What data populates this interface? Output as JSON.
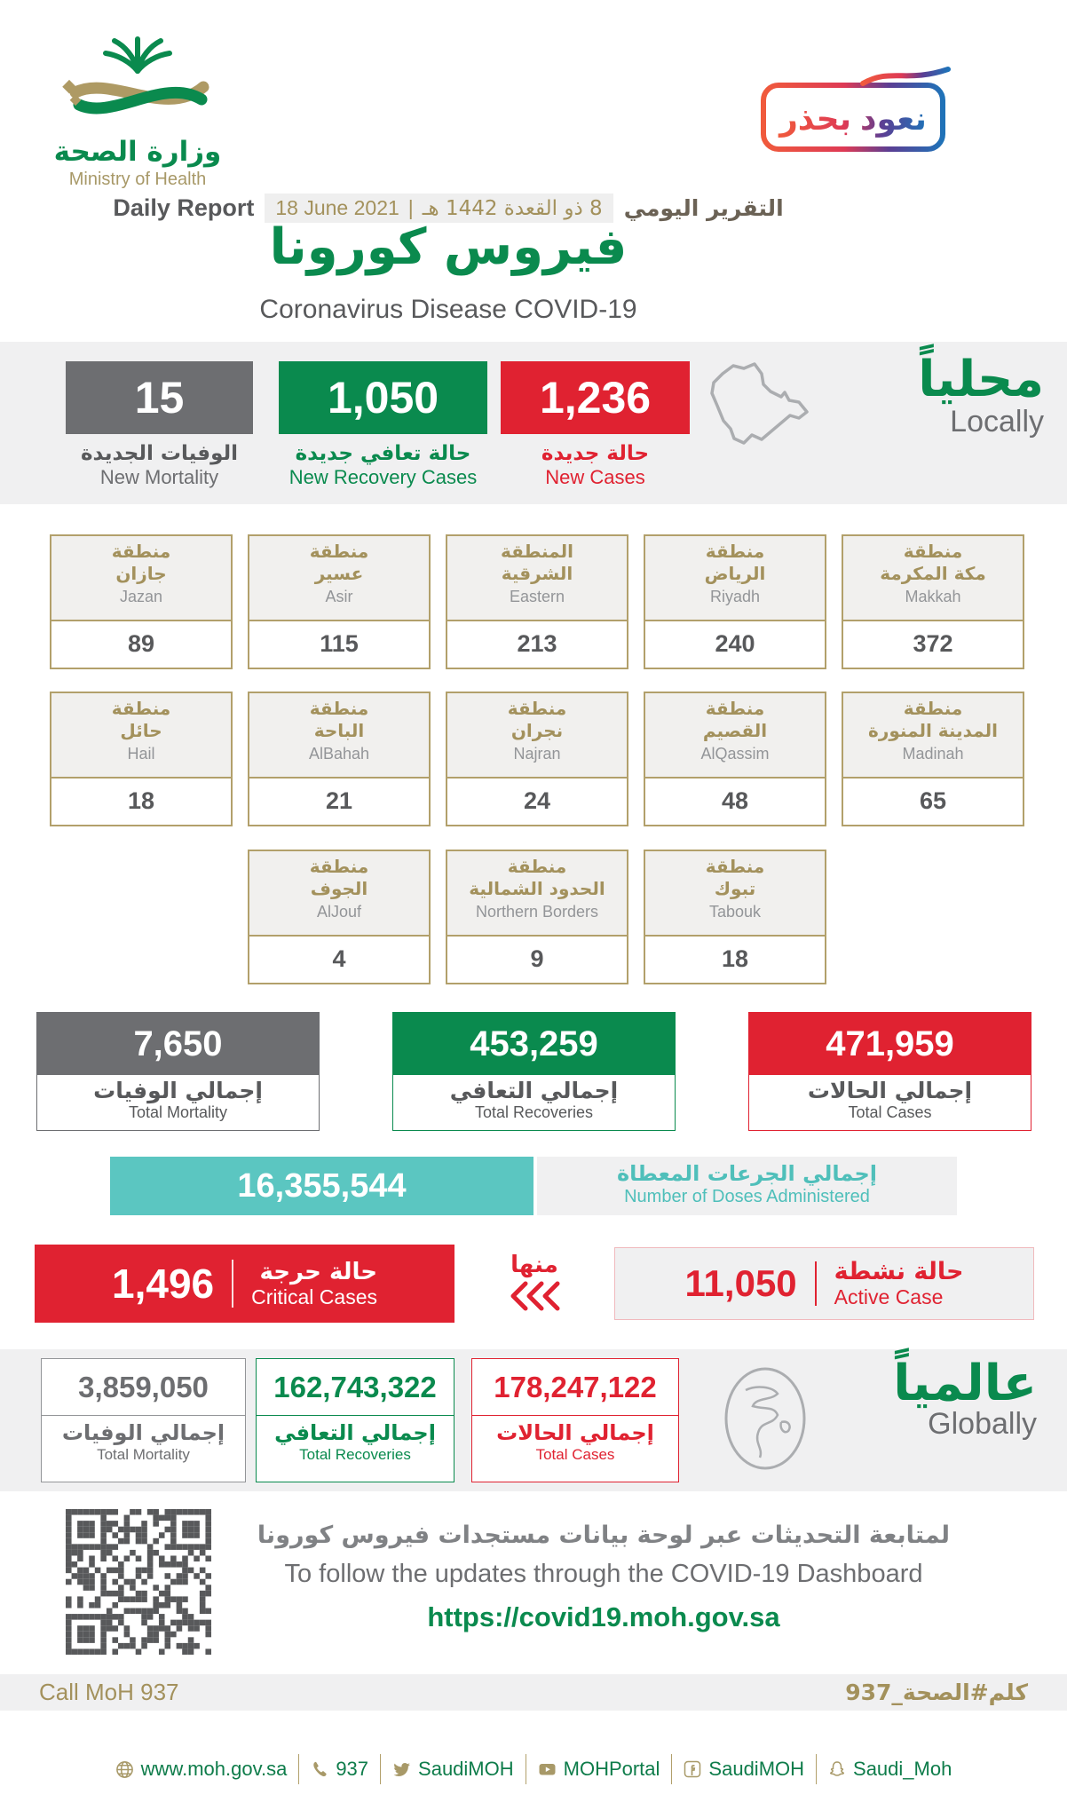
{
  "colors": {
    "green": "#0A8A4E",
    "red": "#E02231",
    "gray": "#6D6E71",
    "gold": "#A3915C",
    "gold_border": "#B2A06B",
    "teal": "#5BC6C1",
    "band_bg": "#F0F0F1",
    "dark_text": "#58595B"
  },
  "header": {
    "logo_ar": "وزارة الصحة",
    "logo_en": "Ministry of Health",
    "badge_text": "نعود بحذر",
    "report_label_en": "Daily Report",
    "date_gregorian": "18 June 2021",
    "date_separator": "|",
    "date_hijri": "8 ذو القعدة 1442 هـ",
    "report_label_ar": "التقرير اليومي",
    "title_ar": "فيروس كورونا",
    "title_en": "Coronavirus Disease COVID-19"
  },
  "locally": {
    "title_ar": "محلياً",
    "title_en": "Locally",
    "stats": [
      {
        "value": "15",
        "label_ar": "الوفيات الجديدة",
        "label_en": "New Mortality"
      },
      {
        "value": "1,050",
        "label_ar": "حالة تعافي جديدة",
        "label_en": "New Recovery Cases"
      },
      {
        "value": "1,236",
        "label_ar": "حالة جديدة",
        "label_en": "New Cases"
      }
    ]
  },
  "regions": {
    "rows": [
      {
        "cards": [
          {
            "ar1": "منطقة",
            "ar2": "جازان",
            "en": "Jazan",
            "value": "89"
          },
          {
            "ar1": "منطقة",
            "ar2": "عسير",
            "en": "Asir",
            "value": "115"
          },
          {
            "ar1": "المنطقة",
            "ar2": "الشرقية",
            "en": "Eastern",
            "value": "213"
          },
          {
            "ar1": "منطقة",
            "ar2": "الرياض",
            "en": "Riyadh",
            "value": "240"
          },
          {
            "ar1": "منطقة",
            "ar2": "مكة المكرمة",
            "en": "Makkah",
            "value": "372"
          }
        ]
      },
      {
        "cards": [
          {
            "ar1": "منطقة",
            "ar2": "حائل",
            "en": "Hail",
            "value": "18"
          },
          {
            "ar1": "منطقة",
            "ar2": "الباحة",
            "en": "AlBahah",
            "value": "21"
          },
          {
            "ar1": "منطقة",
            "ar2": "نجران",
            "en": "Najran",
            "value": "24"
          },
          {
            "ar1": "منطقة",
            "ar2": "القصيم",
            "en": "AlQassim",
            "value": "48"
          },
          {
            "ar1": "منطقة",
            "ar2": "المدينة المنورة",
            "en": "Madinah",
            "value": "65"
          }
        ]
      },
      {
        "cards": [
          {
            "ar1": "منطقة",
            "ar2": "الجوف",
            "en": "AlJouf",
            "value": "4"
          },
          {
            "ar1": "منطقة",
            "ar2": "الحدود الشمالية",
            "en": "Northern Borders",
            "value": "9"
          },
          {
            "ar1": "منطقة",
            "ar2": "تبوك",
            "en": "Tabouk",
            "value": "18"
          }
        ]
      }
    ]
  },
  "totals": [
    {
      "value": "7,650",
      "label_ar": "إجمالي الوفيات",
      "label_en": "Total Mortality"
    },
    {
      "value": "453,259",
      "label_ar": "إجمالي التعافي",
      "label_en": "Total Recoveries"
    },
    {
      "value": "471,959",
      "label_ar": "إجمالي الحالات",
      "label_en": "Total Cases"
    }
  ],
  "doses": {
    "value": "16,355,544",
    "label_ar": "إجمالي الجرعات المعطاة",
    "label_en": "Number of Doses Administered"
  },
  "critical": {
    "value": "1,496",
    "label_ar": "حالة حرجة",
    "label_en": "Critical Cases"
  },
  "of_which_ar": "منها",
  "active": {
    "value": "11,050",
    "label_ar": "حالة نشطة",
    "label_en": "Active Case"
  },
  "globally": {
    "title_ar": "عالمياً",
    "title_en": "Globally",
    "stats": [
      {
        "value": "3,859,050",
        "label_ar": "إجمالي الوفيات",
        "label_en": "Total Mortality"
      },
      {
        "value": "162,743,322",
        "label_ar": "إجمالي التعافي",
        "label_en": "Total Recoveries"
      },
      {
        "value": "178,247,122",
        "label_ar": "إجمالي الحالات",
        "label_en": "Total Cases"
      }
    ]
  },
  "dashboard": {
    "line_ar": "لمتابعة التحديثات عبر لوحة بيانات مستجدات فيروس كورونا",
    "line_en": "To follow the updates through the COVID-19 Dashboard",
    "url": "https://covid19.moh.gov.sa"
  },
  "hotline": {
    "left_en": "Call MoH 937",
    "right_ar": "كلم#الصحة_937"
  },
  "footer": {
    "items": [
      {
        "icon": "globe-icon",
        "label": "www.moh.gov.sa"
      },
      {
        "icon": "phone-icon",
        "label": "937"
      },
      {
        "icon": "twitter-icon",
        "label": "SaudiMOH"
      },
      {
        "icon": "youtube-icon",
        "label": "MOHPortal"
      },
      {
        "icon": "facebook-icon",
        "label": "SaudiMOH"
      },
      {
        "icon": "snapchat-icon",
        "label": "Saudi_Moh"
      }
    ]
  }
}
